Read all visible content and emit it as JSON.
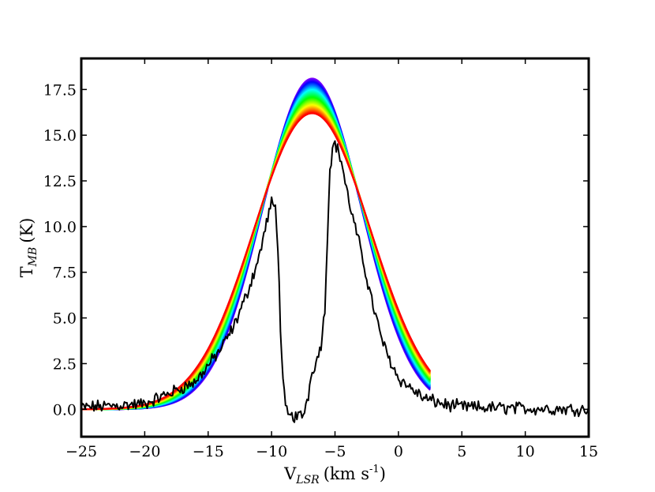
{
  "chart_data": {
    "type": "line",
    "title": "",
    "xlabel": "V_LSR (km s^-1)",
    "ylabel": "T_MB (K)",
    "xlabel_parts": {
      "main": "V",
      "sub": "LSR",
      "units": "(km s",
      "sup": "-1",
      "close": ")"
    },
    "ylabel_parts": {
      "main": "T",
      "sub": "MB",
      "units": "(K)"
    },
    "xlim": [
      -25,
      15
    ],
    "ylim": [
      -1.5,
      19.2
    ],
    "grid": false,
    "legend": "none",
    "xticks": [
      -25,
      -20,
      -15,
      -10,
      -5,
      0,
      5,
      10,
      15
    ],
    "xtick_labels": [
      "−25",
      "−20",
      "−15",
      "−10",
      "−5",
      "0",
      "5",
      "10",
      "15"
    ],
    "yticks": [
      0.0,
      2.5,
      5.0,
      7.5,
      10.0,
      12.5,
      15.0,
      17.5
    ],
    "ytick_labels": [
      "0.0",
      "2.5",
      "5.0",
      "7.5",
      "10.0",
      "12.5",
      "15.0",
      "17.5"
    ],
    "model_fits": {
      "description": "family of Gaussian model fits, colored violet (tallest, narrowest) to red (lowest, broadest)",
      "center_kms": -6.8,
      "peak_range_K": [
        18.1,
        16.2
      ],
      "sigma_range_kms": [
        3.9,
        4.6
      ],
      "count": 40
    },
    "observed_series": {
      "name": "observed spectrum",
      "color": "#000000",
      "description": "noisy line profile with a deep self-absorption dip reaching ~-0.5 K near -8.5 km/s; left peak ~11.5 K at -10 km/s, right peak ~14.6 K at -5 km/s",
      "anchors_x": [
        -25,
        -20,
        -16,
        -15,
        -14,
        -13,
        -12,
        -11,
        -10.3,
        -10,
        -9.7,
        -9.5,
        -9.3,
        -9.1,
        -8.9,
        -8.6,
        -8,
        -7.5,
        -7.1,
        -6.8,
        -6.5,
        -6.1,
        -5.8,
        -5.6,
        -5.4,
        -5.2,
        -5,
        -4.8,
        -4.5,
        -4,
        -3.5,
        -3,
        -2.5,
        -2,
        -1.5,
        -1,
        0,
        2,
        4,
        6,
        10,
        15
      ],
      "anchors_y": [
        0.1,
        0.3,
        1.5,
        2.4,
        3.3,
        4.5,
        6.2,
        8.3,
        10.5,
        11.3,
        11.0,
        9.0,
        4.5,
        1.5,
        0.0,
        -0.4,
        -0.4,
        -0.3,
        0.8,
        2.2,
        2.5,
        3.6,
        5.4,
        9.5,
        13.2,
        14.2,
        14.6,
        14.2,
        13.6,
        11.7,
        10.2,
        8.8,
        7.2,
        5.7,
        4.3,
        3.2,
        1.7,
        0.6,
        0.2,
        0.1,
        0.05,
        0.0
      ],
      "noise_K": 0.28
    }
  }
}
